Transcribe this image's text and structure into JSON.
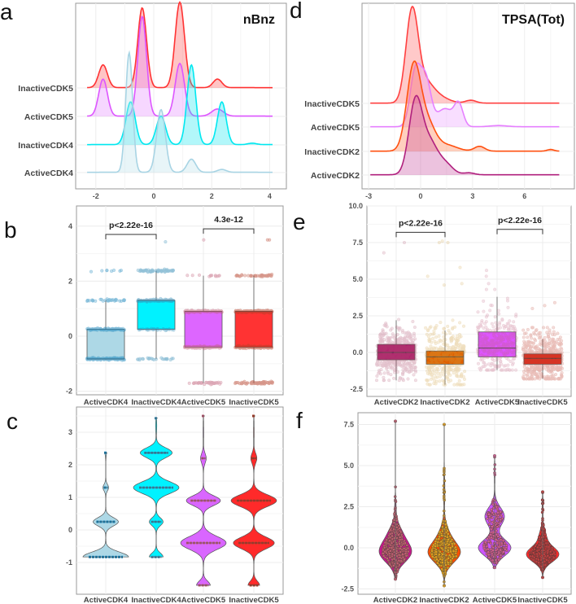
{
  "chart_data": [
    {
      "panel": "a",
      "type": "ridgeline",
      "title": "nBnz",
      "xticks": [
        -2,
        0,
        2,
        4
      ],
      "xlim": [
        -2.3,
        4.1
      ],
      "series": [
        {
          "name": "InactiveCDK5",
          "color": "#ff3333",
          "fill": "rgba(255,90,90,0.35)",
          "peaks": [
            [
              -1.75,
              0.15,
              0.8
            ],
            [
              -0.4,
              0.15,
              2.8
            ],
            [
              0.9,
              0.16,
              3.0
            ],
            [
              2.2,
              0.15,
              0.3
            ]
          ]
        },
        {
          "name": "ActiveCDK5",
          "color": "#dd55ff",
          "fill": "rgba(230,140,255,0.35)",
          "peaks": [
            [
              -1.75,
              0.15,
              1.3
            ],
            [
              -0.4,
              0.15,
              3.5
            ],
            [
              0.9,
              0.16,
              1.85
            ],
            [
              2.2,
              0.2,
              0.25
            ]
          ]
        },
        {
          "name": "InactiveCDK4",
          "color": "#00e8f0",
          "fill": "rgba(0,230,240,0.3)",
          "peaks": [
            [
              -0.8,
              0.16,
              1.5
            ],
            [
              0.25,
              0.16,
              1.0
            ],
            [
              1.3,
              0.15,
              2.8
            ],
            [
              2.35,
              0.15,
              1.5
            ],
            [
              3.4,
              0.15,
              0.05
            ]
          ]
        },
        {
          "name": "ActiveCDK4",
          "color": "#a8d4e4",
          "fill": "rgba(190,225,235,0.35)",
          "peaks": [
            [
              -0.85,
              0.12,
              4.2
            ],
            [
              0.25,
              0.15,
              2.2
            ],
            [
              1.3,
              0.15,
              0.46
            ],
            [
              2.35,
              0.15,
              0.1
            ]
          ]
        }
      ]
    },
    {
      "panel": "d",
      "type": "ridgeline",
      "title": "TPSA(Tot)",
      "xticks": [
        -3,
        0,
        3,
        6
      ],
      "xlim": [
        -2.9,
        8.0
      ],
      "series": [
        {
          "name": "InactiveCDK5",
          "color": "#ff4040",
          "fill": "rgba(255,100,100,0.35)",
          "peaks": [
            [
              -0.5,
              0.35,
              3.7
            ],
            [
              0.2,
              0.5,
              0.8
            ],
            [
              1.0,
              0.6,
              0.25
            ],
            [
              2.9,
              0.3,
              0.12
            ]
          ]
        },
        {
          "name": "ActiveCDK5",
          "color": "#e680ff",
          "fill": "rgba(235,160,255,0.35)",
          "peaks": [
            [
              -0.3,
              0.3,
              2.3
            ],
            [
              0.3,
              0.3,
              1.9
            ],
            [
              1.4,
              0.45,
              0.75
            ],
            [
              2.2,
              0.25,
              0.9
            ],
            [
              4.5,
              0.5,
              0.05
            ]
          ]
        },
        {
          "name": "InactiveCDK2",
          "color": "#ff5010",
          "fill": "rgba(255,120,70,0.35)",
          "peaks": [
            [
              -0.4,
              0.4,
              3.5
            ],
            [
              0.4,
              0.45,
              1.1
            ],
            [
              1.5,
              0.6,
              0.25
            ],
            [
              3.4,
              0.3,
              0.2
            ],
            [
              7.5,
              0.2,
              0.07
            ]
          ]
        },
        {
          "name": "ActiveCDK2",
          "color": "#b0207e",
          "fill": "rgba(200,80,160,0.35)",
          "peaks": [
            [
              -0.3,
              0.38,
              3.0
            ],
            [
              0.5,
              0.45,
              1.3
            ],
            [
              1.4,
              0.45,
              0.45
            ],
            [
              2.8,
              0.3,
              0.08
            ]
          ]
        }
      ]
    },
    {
      "panel": "b",
      "type": "box",
      "yticks": [
        -2,
        0,
        2,
        4
      ],
      "yticklabels": [
        "-2",
        "0",
        "2",
        "4"
      ],
      "categories": [
        {
          "name": "ActiveCDK4",
          "color": "#add8e6",
          "point": "#1a86bb",
          "q1": -0.83,
          "median": -0.83,
          "q3": 0.25,
          "lo": -0.83,
          "hi": 1.3,
          "levels": [
            [
              -0.83,
              120
            ],
            [
              0.25,
              100
            ],
            [
              1.3,
              35
            ],
            [
              2.37,
              8
            ]
          ],
          "outliers": []
        },
        {
          "name": "InactiveCDK4",
          "color": "#00f2ff",
          "point": "#3a8fb8",
          "q1": 0.25,
          "median": 1.3,
          "q3": 1.3,
          "lo": -0.83,
          "hi": 2.37,
          "levels": [
            [
              -0.83,
              25
            ],
            [
              0.25,
              30
            ],
            [
              1.3,
              100
            ],
            [
              2.37,
              60
            ]
          ],
          "outliers": [
            3.43
          ]
        },
        {
          "name": "ActiveCDK5",
          "color": "#dd66ff",
          "point": "#c0607a",
          "q1": -0.4,
          "median": 0.9,
          "q3": 0.9,
          "lo": -1.7,
          "hi": 2.2,
          "levels": [
            [
              -1.7,
              40
            ],
            [
              -0.4,
              120
            ],
            [
              0.9,
              100
            ],
            [
              2.2,
              12
            ]
          ],
          "outliers": [
            3.5
          ]
        },
        {
          "name": "InactiveCDK5",
          "color": "#ff3333",
          "point": "#b5402a",
          "q1": -0.4,
          "median": 0.9,
          "q3": 0.9,
          "lo": -1.7,
          "hi": 2.2,
          "levels": [
            [
              -1.7,
              60
            ],
            [
              -0.4,
              140
            ],
            [
              0.9,
              150
            ],
            [
              2.2,
              40
            ]
          ],
          "outliers": [
            3.5,
            3.5
          ]
        }
      ],
      "comparisons": [
        {
          "groups": [
            0,
            1
          ],
          "label": "p<2.22e-16",
          "y": 3.7
        },
        {
          "groups": [
            2,
            3
          ],
          "label": "4.3e-12",
          "y": 3.9
        }
      ]
    },
    {
      "panel": "e",
      "type": "box",
      "yticks": [
        -2.5,
        0,
        2.5,
        5,
        7.5,
        10
      ],
      "yticklabels": [
        "-2.5",
        "0.0",
        "2.5",
        "5.0",
        "7.5",
        "10.0"
      ],
      "categories": [
        {
          "name": "ActiveCDK2",
          "color": "#b0206e",
          "point": "#b05070",
          "q1": -0.5,
          "median": 0.0,
          "q3": 0.55,
          "lo": -1.9,
          "hi": 2.2,
          "dist": [
            0.0,
            0.85,
            500
          ],
          "outliers": [
            7.5,
            6.8
          ]
        },
        {
          "name": "InactiveCDK2",
          "color": "#e06000",
          "point": "#d0a040",
          "q1": -0.8,
          "median": -0.3,
          "q3": 0.1,
          "lo": -2.2,
          "hi": 1.5,
          "dist": [
            -0.3,
            1.0,
            380
          ],
          "outliers": [
            7.5,
            7.5,
            7.6,
            5.8,
            5.2,
            4.7,
            4.6
          ]
        },
        {
          "name": "ActiveCDK5",
          "color": "#dd55ff",
          "point": "#c06080",
          "q1": -0.3,
          "median": 0.3,
          "q3": 1.4,
          "lo": -1.2,
          "hi": 3.8,
          "dist": [
            0.5,
            1.1,
            300
          ],
          "outliers": [
            5.6,
            5.2,
            4.3,
            4.7,
            4.3
          ]
        },
        {
          "name": "InactiveCDK5",
          "color": "#e03020",
          "point": "#c04030",
          "q1": -0.8,
          "median": -0.4,
          "q3": -0.1,
          "lo": -1.8,
          "hi": 0.9,
          "dist": [
            -0.4,
            0.9,
            500
          ],
          "outliers": [
            3.4,
            3.2,
            3.0
          ]
        }
      ],
      "comparisons": [
        {
          "groups": [
            0,
            1
          ],
          "label": "p<2.22e-16",
          "y": 8.2
        },
        {
          "groups": [
            2,
            3
          ],
          "label": "p<2.22e-16",
          "y": 8.4
        }
      ]
    },
    {
      "panel": "c",
      "type": "violin",
      "yticks": [
        -1,
        0,
        1,
        2,
        3
      ],
      "yticklabels": [
        "-1",
        "0",
        "1",
        "2",
        "3"
      ],
      "categories": [
        {
          "name": "ActiveCDK4",
          "color": "#add8e6",
          "point": "#1a86bb",
          "range": [
            -0.83,
            2.37
          ],
          "comps": [
            [
              -0.83,
              0.15,
              1.0
            ],
            [
              0.25,
              0.13,
              0.55
            ],
            [
              1.3,
              0.1,
              0.12
            ],
            [
              2.37,
              0.1,
              0.03
            ]
          ],
          "levels": [
            -0.83,
            0.25,
            1.3,
            2.37
          ]
        },
        {
          "name": "InactiveCDK4",
          "color": "#00f2ff",
          "point": "#3a8fb8",
          "range": [
            -0.83,
            3.43
          ],
          "comps": [
            [
              -0.83,
              0.12,
              0.3
            ],
            [
              0.25,
              0.12,
              0.3
            ],
            [
              1.3,
              0.18,
              1.0
            ],
            [
              2.37,
              0.15,
              0.7
            ],
            [
              3.2,
              0.2,
              0.02
            ]
          ],
          "levels": [
            -0.83,
            0.25,
            1.3,
            2.37,
            3.43
          ]
        },
        {
          "name": "ActiveCDK5",
          "color": "#d966ff",
          "point": "#c0607a",
          "range": [
            -1.7,
            3.5
          ],
          "comps": [
            [
              -1.7,
              0.13,
              0.3
            ],
            [
              -0.4,
              0.2,
              1.0
            ],
            [
              0.9,
              0.15,
              0.75
            ],
            [
              2.2,
              0.15,
              0.12
            ],
            [
              3.0,
              0.3,
              0.01
            ]
          ],
          "levels": [
            -1.7,
            -0.4,
            0.9,
            2.2,
            3.5
          ]
        },
        {
          "name": "InactiveCDK5",
          "color": "#ff2a2a",
          "point": "#b5402a",
          "range": [
            -1.7,
            3.5
          ],
          "comps": [
            [
              -1.7,
              0.13,
              0.25
            ],
            [
              -0.4,
              0.18,
              0.9
            ],
            [
              0.9,
              0.18,
              1.0
            ],
            [
              2.2,
              0.15,
              0.13
            ],
            [
              3.0,
              0.3,
              0.01
            ]
          ],
          "levels": [
            -1.7,
            -0.4,
            0.9,
            2.2,
            3.5
          ]
        }
      ]
    },
    {
      "panel": "f",
      "type": "violin",
      "yticks": [
        -2.5,
        0,
        2.5,
        5,
        7.5
      ],
      "yticklabels": [
        "-2.5",
        "0.0",
        "2.5",
        "5.0",
        "7.5"
      ],
      "categories": [
        {
          "name": "ActiveCDK2",
          "color": "#c8178a",
          "point": "#c06070",
          "range": [
            -1.9,
            7.7
          ],
          "comps": [
            [
              -0.3,
              0.6,
              1.0
            ],
            [
              0.8,
              0.6,
              0.4
            ],
            [
              2.5,
              0.5,
              0.04
            ]
          ],
          "n": 420
        },
        {
          "name": "InactiveCDK2",
          "color": "#ff4f00",
          "point": "#e0a020",
          "range": [
            -2.3,
            7.5
          ],
          "comps": [
            [
              -0.3,
              0.6,
              1.0
            ],
            [
              0.8,
              0.6,
              0.25
            ],
            [
              3.5,
              0.8,
              0.04
            ]
          ],
          "n": 380
        },
        {
          "name": "ActiveCDK5",
          "color": "#cc55ff",
          "point": "#d06090",
          "range": [
            -1.2,
            5.6
          ],
          "comps": [
            [
              0.0,
              0.5,
              1.0
            ],
            [
              1.9,
              0.55,
              0.6
            ],
            [
              4.5,
              0.6,
              0.02
            ]
          ],
          "n": 260
        },
        {
          "name": "InactiveCDK5",
          "color": "#ff2a2a",
          "point": "#c04040",
          "range": [
            -1.8,
            3.4
          ],
          "comps": [
            [
              -0.4,
              0.45,
              1.0
            ],
            [
              0.7,
              0.45,
              0.2
            ],
            [
              2.5,
              0.5,
              0.03
            ]
          ],
          "n": 400
        }
      ]
    }
  ]
}
